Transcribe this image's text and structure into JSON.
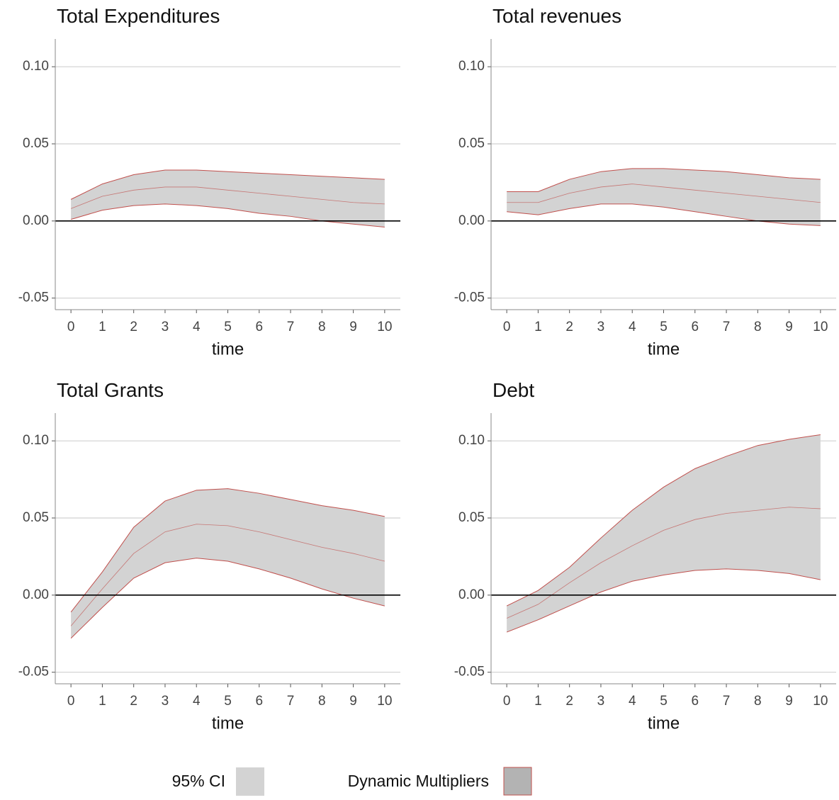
{
  "chart_data": [
    {
      "type": "band",
      "title": "Total Expenditures",
      "xlabel": "time",
      "x": [
        0,
        1,
        2,
        3,
        4,
        5,
        6,
        7,
        8,
        9,
        10
      ],
      "ci_upper": [
        0.014,
        0.024,
        0.03,
        0.033,
        0.033,
        0.032,
        0.031,
        0.03,
        0.029,
        0.028,
        0.027
      ],
      "multiplier": [
        0.008,
        0.016,
        0.02,
        0.022,
        0.022,
        0.02,
        0.018,
        0.016,
        0.014,
        0.012,
        0.011
      ],
      "ci_lower": [
        0.001,
        0.007,
        0.01,
        0.011,
        0.01,
        0.008,
        0.005,
        0.003,
        0.0,
        -0.002,
        -0.004
      ],
      "xlim": [
        -0.5,
        10.5
      ],
      "xticks": [
        0,
        1,
        2,
        3,
        4,
        5,
        6,
        7,
        8,
        9,
        10
      ],
      "ylim": [
        -0.0575,
        0.118
      ],
      "yticks": [
        {
          "value": 0.1,
          "label": "0.10"
        },
        0.05,
        {
          "value": 0,
          "label": "0.00"
        },
        -0.05
      ],
      "hline": 0,
      "grid": true
    },
    {
      "type": "band",
      "title": "Total revenues",
      "xlabel": "time",
      "x": [
        0,
        1,
        2,
        3,
        4,
        5,
        6,
        7,
        8,
        9,
        10
      ],
      "ci_upper": [
        0.019,
        0.019,
        0.027,
        0.032,
        0.034,
        0.034,
        0.033,
        0.032,
        0.03,
        0.028,
        0.027
      ],
      "multiplier": [
        0.012,
        0.012,
        0.018,
        0.022,
        0.024,
        0.022,
        0.02,
        0.018,
        0.016,
        0.014,
        0.012
      ],
      "ci_lower": [
        0.006,
        0.004,
        0.008,
        0.011,
        0.011,
        0.009,
        0.006,
        0.003,
        0.0,
        -0.002,
        -0.003
      ],
      "xlim": [
        -0.5,
        10.5
      ],
      "xticks": [
        0,
        1,
        2,
        3,
        4,
        5,
        6,
        7,
        8,
        9,
        10
      ],
      "ylim": [
        -0.0575,
        0.118
      ],
      "yticks": [
        {
          "value": 0.1,
          "label": "0.10"
        },
        0.05,
        {
          "value": 0,
          "label": "0.00"
        },
        -0.05
      ],
      "hline": 0,
      "grid": true
    },
    {
      "type": "band",
      "title": "Total Grants",
      "xlabel": "time",
      "x": [
        0,
        1,
        2,
        3,
        4,
        5,
        6,
        7,
        8,
        9,
        10
      ],
      "ci_upper": [
        -0.011,
        0.015,
        0.044,
        0.061,
        0.068,
        0.069,
        0.066,
        0.062,
        0.058,
        0.055,
        0.051
      ],
      "multiplier": [
        -0.02,
        0.004,
        0.027,
        0.041,
        0.046,
        0.045,
        0.041,
        0.036,
        0.031,
        0.027,
        0.022
      ],
      "ci_lower": [
        -0.028,
        -0.008,
        0.011,
        0.021,
        0.024,
        0.022,
        0.017,
        0.011,
        0.004,
        -0.002,
        -0.007
      ],
      "xlim": [
        -0.5,
        10.5
      ],
      "xticks": [
        0,
        1,
        2,
        3,
        4,
        5,
        6,
        7,
        8,
        9,
        10
      ],
      "ylim": [
        -0.0575,
        0.118
      ],
      "yticks": [
        {
          "value": 0.1,
          "label": "0.10"
        },
        0.05,
        {
          "value": 0,
          "label": "0.00"
        },
        -0.05
      ],
      "hline": 0,
      "grid": true
    },
    {
      "type": "band",
      "title": "Debt",
      "xlabel": "time",
      "x": [
        0,
        1,
        2,
        3,
        4,
        5,
        6,
        7,
        8,
        9,
        10
      ],
      "ci_upper": [
        -0.007,
        0.003,
        0.018,
        0.037,
        0.055,
        0.07,
        0.082,
        0.09,
        0.097,
        0.101,
        0.104
      ],
      "multiplier": [
        -0.015,
        -0.006,
        0.008,
        0.021,
        0.032,
        0.042,
        0.049,
        0.053,
        0.055,
        0.057,
        0.056
      ],
      "ci_lower": [
        -0.024,
        -0.016,
        -0.007,
        0.002,
        0.009,
        0.013,
        0.016,
        0.017,
        0.016,
        0.014,
        0.01
      ],
      "xlim": [
        -0.5,
        10.5
      ],
      "xticks": [
        0,
        1,
        2,
        3,
        4,
        5,
        6,
        7,
        8,
        9,
        10
      ],
      "ylim": [
        -0.0575,
        0.118
      ],
      "yticks": [
        {
          "value": 0.1,
          "label": "0.10"
        },
        0.05,
        {
          "value": 0,
          "label": "0.00"
        },
        -0.05
      ],
      "hline": 0,
      "grid": true
    }
  ],
  "style": {
    "band_color": "#d3d3d3",
    "line_color": "#c0504d",
    "multiplier_fill": "#b3b3b3"
  },
  "legend": [
    {
      "name": "95% CI"
    },
    {
      "name": "Dynamic Multipliers"
    }
  ]
}
